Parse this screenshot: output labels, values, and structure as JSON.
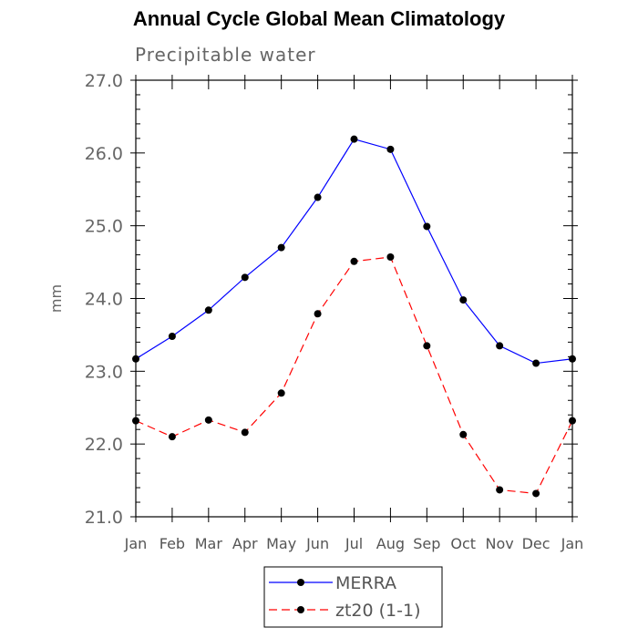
{
  "chart_data": {
    "type": "line",
    "title": "Annual Cycle Global Mean Climatology",
    "subtitle": "Precipitable water",
    "xlabel": "",
    "ylabel": "mm",
    "categories": [
      "Jan",
      "Feb",
      "Mar",
      "Apr",
      "May",
      "Jun",
      "Jul",
      "Aug",
      "Sep",
      "Oct",
      "Nov",
      "Dec",
      "Jan"
    ],
    "ylim": [
      21.0,
      27.0
    ],
    "yticks": [
      "21.0",
      "22.0",
      "23.0",
      "24.0",
      "25.0",
      "26.0",
      "27.0"
    ],
    "series": [
      {
        "name": "MERRA",
        "color": "#0000ff",
        "dash": "solid",
        "values": [
          23.17,
          23.48,
          23.84,
          24.29,
          24.7,
          25.39,
          26.19,
          26.05,
          24.99,
          23.98,
          23.35,
          23.11,
          23.17
        ]
      },
      {
        "name": "zt20 (1-1)",
        "color": "#ff0000",
        "dash": "dashed",
        "values": [
          22.32,
          22.1,
          22.33,
          22.16,
          22.7,
          23.79,
          24.51,
          24.57,
          23.35,
          22.13,
          21.37,
          21.32,
          22.32
        ]
      }
    ],
    "legend_position": "bottom-center",
    "grid": false
  }
}
